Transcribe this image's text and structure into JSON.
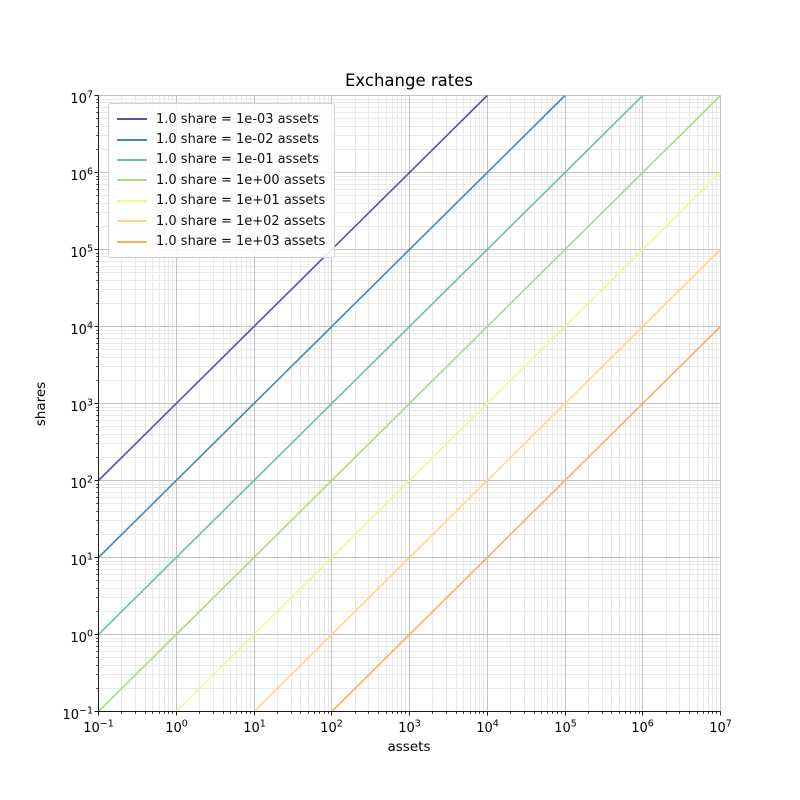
{
  "chart_data": {
    "type": "line",
    "title": "Exchange rates",
    "xlabel": "assets",
    "ylabel": "shares",
    "xscale": "log10",
    "yscale": "log10",
    "xlim": [
      0.1,
      10000000
    ],
    "ylim": [
      0.1,
      10000000
    ],
    "tick_exponents": [
      -1,
      0,
      1,
      2,
      3,
      4,
      5,
      6,
      7
    ],
    "x_tick_labels": [
      "10^-1",
      "10^0",
      "10^1",
      "10^2",
      "10^3",
      "10^4",
      "10^5",
      "10^6",
      "10^7"
    ],
    "y_tick_labels": [
      "10^-1",
      "10^0",
      "10^1",
      "10^2",
      "10^3",
      "10^4",
      "10^5",
      "10^6",
      "10^7"
    ],
    "grid": {
      "major": true,
      "minor": true,
      "major_color": "#c2c2c2",
      "minor_color": "#e8e8e8"
    },
    "legend_position": "upper-left",
    "series": [
      {
        "label": "1.0 share = 1e-03 assets",
        "assets_per_share": 0.001,
        "shares_per_asset": 1000,
        "color": "#5e4fa2"
      },
      {
        "label": "1.0 share = 1e-02 assets",
        "assets_per_share": 0.01,
        "shares_per_asset": 100,
        "color": "#3a8bbe"
      },
      {
        "label": "1.0 share = 1e-01 assets",
        "assets_per_share": 0.1,
        "shares_per_asset": 10,
        "color": "#66c2a5"
      },
      {
        "label": "1.0 share = 1e+00 assets",
        "assets_per_share": 1,
        "shares_per_asset": 1,
        "color": "#a5da8b"
      },
      {
        "label": "1.0 share = 1e+01 assets",
        "assets_per_share": 10,
        "shares_per_asset": 0.1,
        "color": "#f0f896"
      },
      {
        "label": "1.0 share = 1e+02 assets",
        "assets_per_share": 100,
        "shares_per_asset": 0.01,
        "color": "#fed883"
      },
      {
        "label": "1.0 share = 1e+03 assets",
        "assets_per_share": 1000,
        "shares_per_asset": 0.001,
        "color": "#fdae61"
      }
    ],
    "axis": {
      "spine_color": "#1a1a1a",
      "line_width": 1.6
    }
  }
}
